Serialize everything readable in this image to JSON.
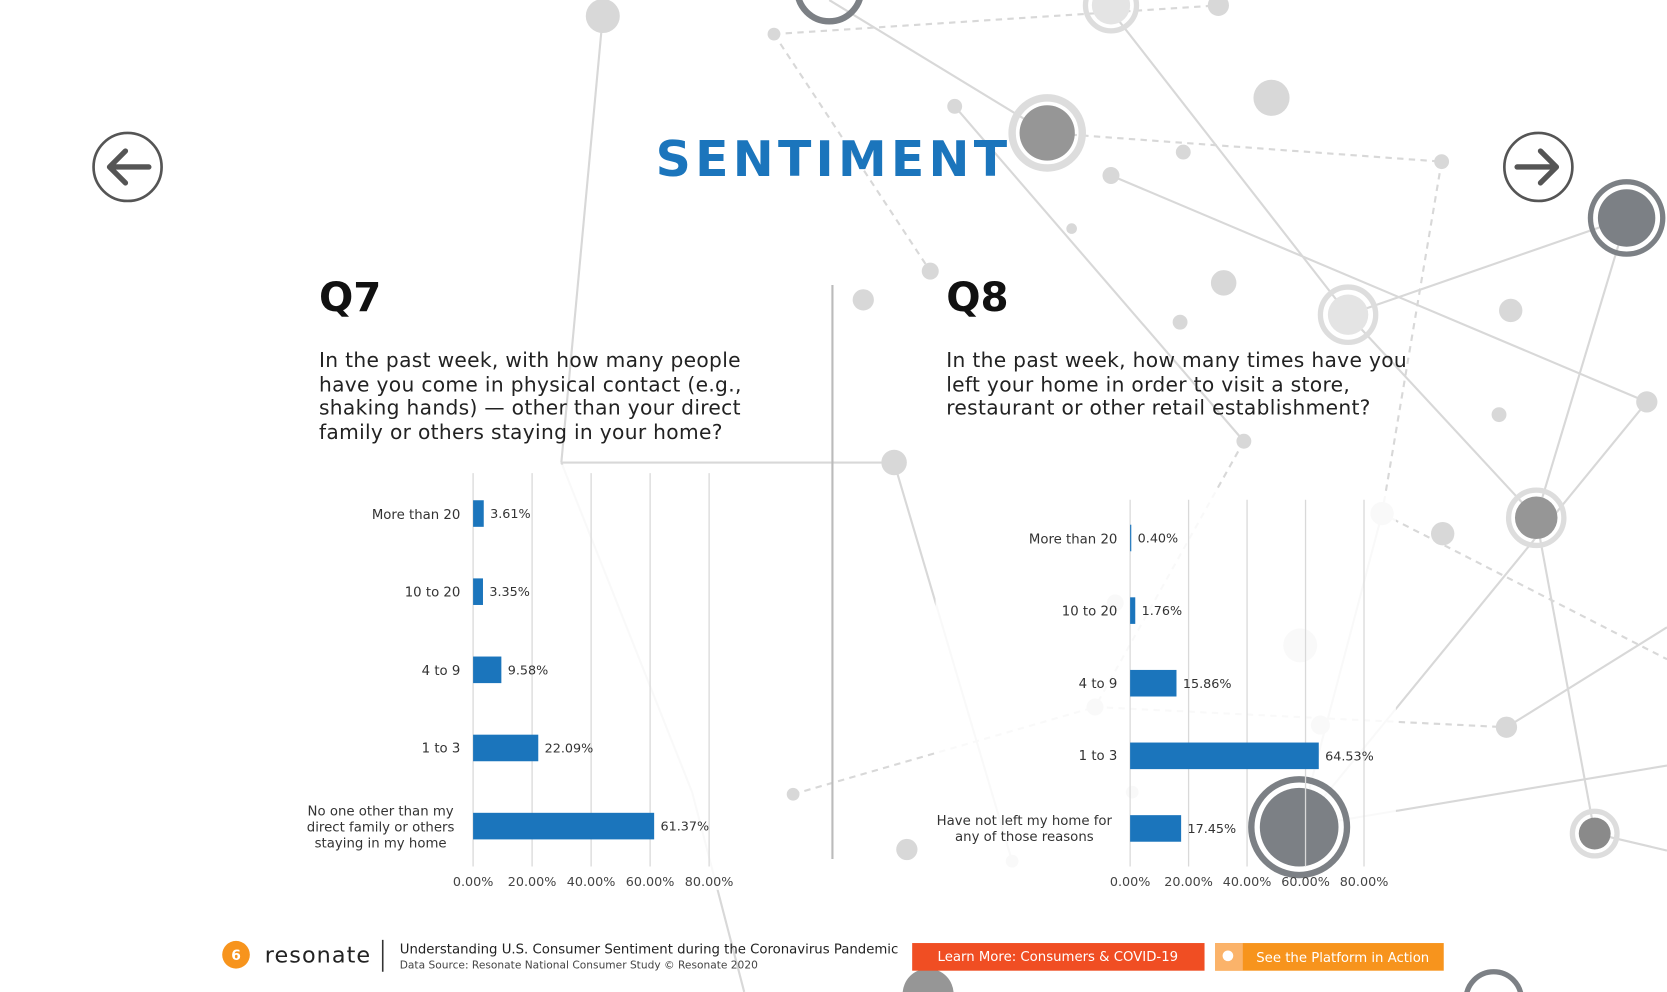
{
  "title": "SENTIMENT",
  "chart_data": [
    {
      "type": "bar",
      "orientation": "horizontal",
      "title": "Q7",
      "subtitle": "In the past week, with how many people have you come in physical contact (e.g., shaking hands) — other than your direct family or others staying in your home?",
      "categories": [
        "More than 20",
        "10 to 20",
        "4 to 9",
        "1 to 3",
        "No one other than my direct family or others staying in my home"
      ],
      "values": [
        3.61,
        3.35,
        9.58,
        22.09,
        61.37
      ],
      "value_labels": [
        "3.61%",
        "3.35%",
        "9.58%",
        "22.09%",
        "61.37%"
      ],
      "color": "#1b75bc",
      "grid": true,
      "xlim": [
        0,
        80
      ],
      "xticks": [
        {
          "value": 0,
          "label": "0.00%"
        },
        {
          "value": 20,
          "label": "20.00%"
        },
        {
          "value": 40,
          "label": "40.00%"
        },
        {
          "value": 60,
          "label": "60.00%"
        },
        {
          "value": 80,
          "label": "80.00%"
        }
      ]
    },
    {
      "type": "bar",
      "orientation": "horizontal",
      "title": "Q8",
      "subtitle": "In the past week, how many times have you left your home in order to visit a store, restaurant or other retail establishment?",
      "categories": [
        "More than 20",
        "10 to 20",
        "4 to 9",
        "1 to 3",
        "Have not left my home for any of those reasons"
      ],
      "values": [
        0.4,
        1.76,
        15.86,
        64.53,
        17.45
      ],
      "value_labels": [
        "0.40%",
        "1.76%",
        "15.86%",
        "64.53%",
        "17.45%"
      ],
      "color": "#1b75bc",
      "grid": true,
      "xlim": [
        0,
        80
      ],
      "xticks": [
        {
          "value": 0,
          "label": "0.00%"
        },
        {
          "value": 20,
          "label": "20.00%"
        },
        {
          "value": 40,
          "label": "40.00%"
        },
        {
          "value": 60,
          "label": "60.00%"
        },
        {
          "value": 80,
          "label": "80.00%"
        }
      ]
    }
  ],
  "footer": {
    "page": "6",
    "logo": "resonate",
    "heading": "Understanding U.S. Consumer Sentiment during the Coronavirus Pandemic",
    "source": "Data Source: Resonate National Consumer Study © Resonate 2020",
    "button1": "Learn More: Consumers & COVID-19",
    "button2": "See the Platform in Action"
  }
}
